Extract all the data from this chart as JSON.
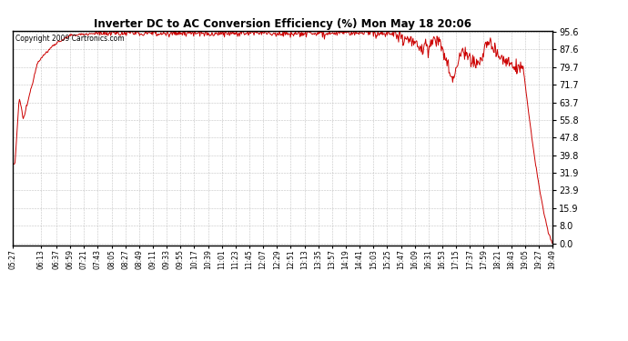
{
  "title": "Inverter DC to AC Conversion Efficiency (%) Mon May 18 20:06",
  "copyright_text": "Copyright 2009 Cartronics.com",
  "line_color": "#cc0000",
  "background_color": "#ffffff",
  "plot_background": "#ffffff",
  "grid_color": "#aaaaaa",
  "yticks": [
    0.0,
    8.0,
    15.9,
    23.9,
    31.9,
    39.8,
    47.8,
    55.8,
    63.7,
    71.7,
    79.7,
    87.6,
    95.6
  ],
  "ymin": 0.0,
  "ymax": 95.6,
  "xtick_labels": [
    "05:27",
    "06:13",
    "06:37",
    "06:59",
    "07:21",
    "07:43",
    "08:05",
    "08:27",
    "08:49",
    "09:11",
    "09:33",
    "09:55",
    "10:17",
    "10:39",
    "11:01",
    "11:23",
    "11:45",
    "12:07",
    "12:29",
    "12:51",
    "13:13",
    "13:35",
    "13:57",
    "14:19",
    "14:41",
    "15:03",
    "15:25",
    "15:47",
    "16:09",
    "16:31",
    "16:53",
    "17:15",
    "17:37",
    "17:59",
    "18:21",
    "18:43",
    "19:05",
    "19:27",
    "19:49"
  ]
}
